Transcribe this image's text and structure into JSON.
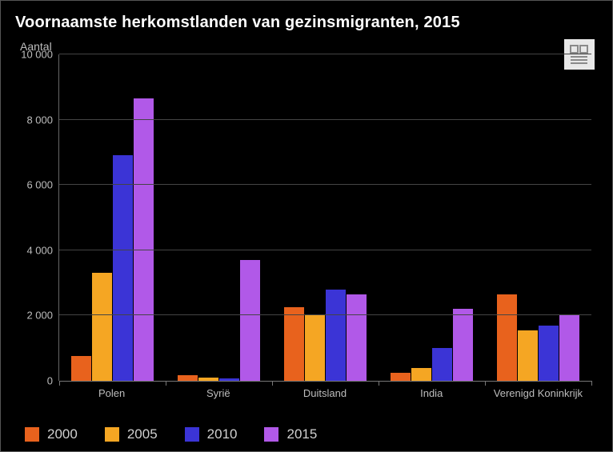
{
  "title": "Voornaamste herkomstlanden van gezinsmigranten, 2015",
  "ylabel": "Aantal",
  "chart": {
    "type": "bar",
    "background_color": "#000000",
    "grid_color": "#444444",
    "axis_color": "#777777",
    "tick_label_color": "#bdbdbd",
    "ylim": [
      0,
      10000
    ],
    "ytick_step": 2000,
    "yticks": [
      {
        "value": 0,
        "label": "0"
      },
      {
        "value": 2000,
        "label": "2 000"
      },
      {
        "value": 4000,
        "label": "4 000"
      },
      {
        "value": 6000,
        "label": "6 000"
      },
      {
        "value": 8000,
        "label": "8 000"
      },
      {
        "value": 10000,
        "label": "10 000"
      }
    ],
    "categories": [
      "Polen",
      "Syrië",
      "Duitsland",
      "India",
      "Verenigd Koninkrijk"
    ],
    "series": [
      {
        "name": "2000",
        "color": "#e8621d",
        "values": [
          750,
          170,
          2250,
          250,
          2650
        ]
      },
      {
        "name": "2005",
        "color": "#f5a623",
        "values": [
          3300,
          100,
          2000,
          400,
          1550
        ]
      },
      {
        "name": "2010",
        "color": "#3b34d6",
        "values": [
          6900,
          80,
          2800,
          1000,
          1700
        ]
      },
      {
        "name": "2015",
        "color": "#b159e8",
        "values": [
          8650,
          3700,
          2650,
          2200,
          2000
        ]
      }
    ],
    "title_fontsize": 20,
    "label_fontsize": 14,
    "legend_fontsize": 17
  },
  "logo": {
    "name": "cbs"
  }
}
